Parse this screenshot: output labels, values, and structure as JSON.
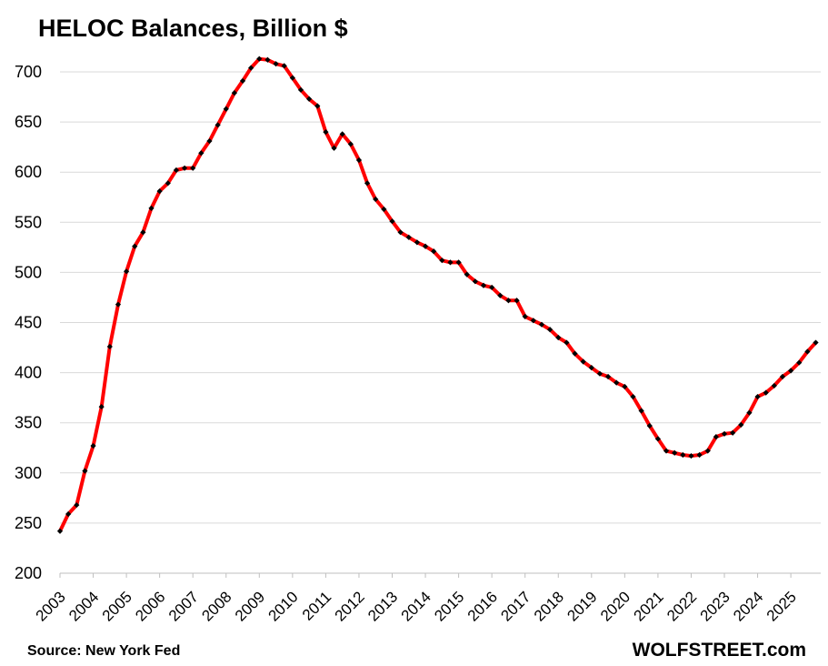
{
  "chart_data": {
    "type": "line",
    "title": "HELOC Balances, Billion $",
    "xlabel": "",
    "ylabel": "",
    "ylim": [
      200,
      720
    ],
    "yticks": [
      200,
      250,
      300,
      350,
      400,
      450,
      500,
      550,
      600,
      650,
      700
    ],
    "xlim": [
      2003,
      2025.9
    ],
    "x_tick_labels": [
      "2003",
      "2004",
      "2005",
      "2006",
      "2007",
      "2008",
      "2009",
      "2010",
      "2011",
      "2012",
      "2013",
      "2014",
      "2015",
      "2016",
      "2017",
      "2018",
      "2019",
      "2020",
      "2021",
      "2022",
      "2023",
      "2024",
      "2025"
    ],
    "grid": "horizontal",
    "legend": "none",
    "line_color": "#ff0000",
    "marker_color": "#000000",
    "series": [
      {
        "x_start": 2003.0,
        "x_step": 0.25,
        "values": [
          242,
          259,
          268,
          302,
          327,
          366,
          426,
          468,
          501,
          526,
          540,
          564,
          581,
          589,
          602,
          604,
          604,
          619,
          631,
          647,
          663,
          679,
          691,
          704,
          713,
          712,
          708,
          706,
          694,
          682,
          673,
          666,
          640,
          624,
          638,
          628,
          612,
          589,
          573,
          563,
          551,
          540,
          535,
          530,
          526,
          521,
          512,
          510,
          510,
          498,
          491,
          487,
          485,
          477,
          472,
          472,
          456,
          452,
          448,
          443,
          435,
          430,
          419,
          411,
          405,
          399,
          396,
          390,
          386,
          376,
          362,
          347,
          334,
          322,
          320,
          318,
          317,
          318,
          322,
          336,
          339,
          340,
          348,
          360,
          376,
          380,
          387,
          396,
          402,
          410,
          421,
          430
        ]
      }
    ]
  },
  "footer": {
    "source": "Source: New York Fed",
    "brand": "WOLFSTREET.com"
  }
}
